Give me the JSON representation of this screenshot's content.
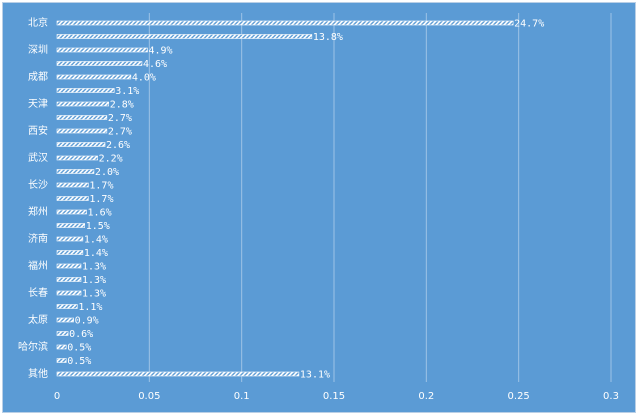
{
  "chart_data": {
    "type": "bar",
    "orientation": "horizontal",
    "title": "",
    "xlabel": "",
    "ylabel": "",
    "xlim": [
      0,
      0.3
    ],
    "x_ticks": [
      0,
      0.05,
      0.1,
      0.15,
      0.2,
      0.25,
      0.3
    ],
    "x_tick_labels": [
      "0",
      "0.05",
      "0.1",
      "0.15",
      "0.2",
      "0.25",
      "0.3"
    ],
    "grid": "vertical",
    "legend": "none",
    "colors": {
      "background": "#5b9bd5",
      "bar": "#ffffff",
      "text": "#ffffff",
      "grid": "#9dc3e6"
    },
    "bars": [
      {
        "category": "北京",
        "value": 0.247,
        "label": "24.7%"
      },
      {
        "category": "",
        "value": 0.138,
        "label": "13.8%"
      },
      {
        "category": "深圳",
        "value": 0.049,
        "label": "4.9%"
      },
      {
        "category": "",
        "value": 0.046,
        "label": "4.6%"
      },
      {
        "category": "成都",
        "value": 0.04,
        "label": "4.0%"
      },
      {
        "category": "",
        "value": 0.031,
        "label": "3.1%"
      },
      {
        "category": "天津",
        "value": 0.028,
        "label": "2.8%"
      },
      {
        "category": "",
        "value": 0.027,
        "label": "2.7%"
      },
      {
        "category": "西安",
        "value": 0.027,
        "label": "2.7%"
      },
      {
        "category": "",
        "value": 0.026,
        "label": "2.6%"
      },
      {
        "category": "武汉",
        "value": 0.022,
        "label": "2.2%"
      },
      {
        "category": "",
        "value": 0.02,
        "label": "2.0%"
      },
      {
        "category": "长沙",
        "value": 0.017,
        "label": "1.7%"
      },
      {
        "category": "",
        "value": 0.017,
        "label": "1.7%"
      },
      {
        "category": "郑州",
        "value": 0.016,
        "label": "1.6%"
      },
      {
        "category": "",
        "value": 0.015,
        "label": "1.5%"
      },
      {
        "category": "济南",
        "value": 0.014,
        "label": "1.4%"
      },
      {
        "category": "",
        "value": 0.014,
        "label": "1.4%"
      },
      {
        "category": "福州",
        "value": 0.013,
        "label": "1.3%"
      },
      {
        "category": "",
        "value": 0.013,
        "label": "1.3%"
      },
      {
        "category": "长春",
        "value": 0.013,
        "label": "1.3%"
      },
      {
        "category": "",
        "value": 0.011,
        "label": "1.1%"
      },
      {
        "category": "太原",
        "value": 0.009,
        "label": "0.9%"
      },
      {
        "category": "",
        "value": 0.006,
        "label": "0.6%"
      },
      {
        "category": "哈尔滨",
        "value": 0.005,
        "label": "0.5%"
      },
      {
        "category": "",
        "value": 0.005,
        "label": "0.5%"
      },
      {
        "category": "其他",
        "value": 0.131,
        "label": "13.1%"
      }
    ]
  }
}
